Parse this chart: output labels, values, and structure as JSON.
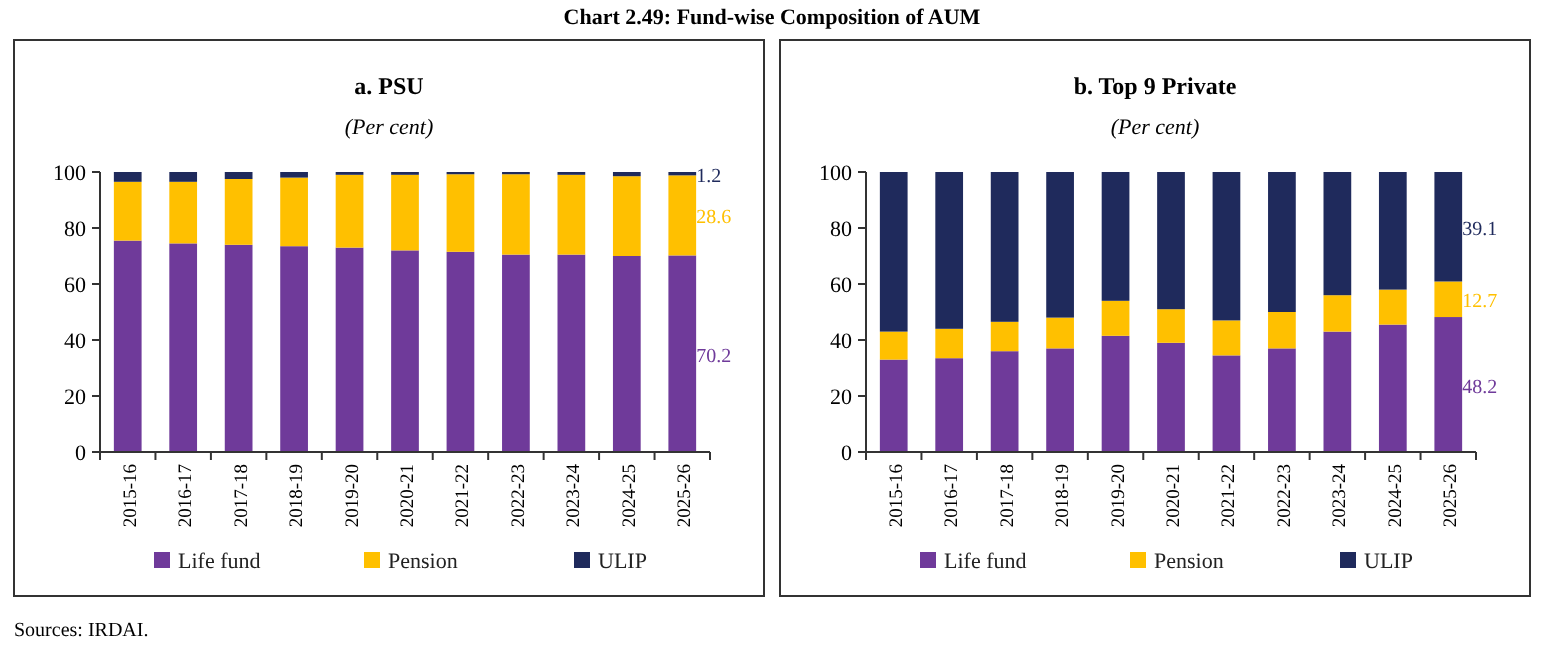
{
  "chart_data": [
    {
      "type": "bar",
      "title": "a. PSU",
      "subtitle": "(Per cent)",
      "stacked": true,
      "legend": "bottom",
      "ylim": [
        0,
        100
      ],
      "yticks": [
        0,
        20,
        40,
        60,
        80,
        100
      ],
      "annotations": [
        "Chart 2.49: Fund-wise Composition of AUM"
      ],
      "categories": [
        "2015-16",
        "2016-17",
        "2017-18",
        "2018-19",
        "2019-20",
        "2020-21",
        "2021-22",
        "2022-23",
        "2023-24",
        "2024-25",
        "2025-26"
      ],
      "series": [
        {
          "name": "Life fund",
          "color": "#6f3a9a",
          "values": [
            75.5,
            74.5,
            74,
            73.5,
            73,
            72,
            71.5,
            70.5,
            70.5,
            70,
            70.2
          ],
          "value_labels": [
            null,
            null,
            null,
            null,
            null,
            null,
            null,
            null,
            null,
            null,
            "70.2"
          ]
        },
        {
          "name": "Pension",
          "color": "#ffc000",
          "values": [
            21,
            22,
            23.5,
            24.5,
            26,
            27,
            27.7,
            28.7,
            28.5,
            28.5,
            28.6
          ],
          "value_labels": [
            null,
            null,
            null,
            null,
            null,
            null,
            null,
            null,
            null,
            null,
            "28.6"
          ]
        },
        {
          "name": "ULIP",
          "color": "#1f2a5c",
          "values": [
            3.5,
            3.5,
            2.5,
            2,
            1,
            1,
            0.8,
            0.8,
            1,
            1.5,
            1.2
          ],
          "value_labels": [
            null,
            null,
            null,
            null,
            null,
            null,
            null,
            null,
            null,
            null,
            "1.2"
          ]
        }
      ]
    },
    {
      "type": "bar",
      "title": "b. Top 9 Private",
      "subtitle": "(Per cent)",
      "stacked": true,
      "legend": "bottom",
      "ylim": [
        0,
        100
      ],
      "yticks": [
        0,
        20,
        40,
        60,
        80,
        100
      ],
      "annotations": [
        "Sources: IRDAI."
      ],
      "categories": [
        "2015-16",
        "2016-17",
        "2017-18",
        "2018-19",
        "2019-20",
        "2020-21",
        "2021-22",
        "2022-23",
        "2023-24",
        "2024-25",
        "2025-26"
      ],
      "series": [
        {
          "name": "Life fund",
          "color": "#6f3a9a",
          "values": [
            33,
            33.5,
            36,
            37,
            41.5,
            39,
            34.5,
            37,
            43,
            45.5,
            48.2
          ],
          "value_labels": [
            null,
            null,
            null,
            null,
            null,
            null,
            null,
            null,
            null,
            null,
            "48.2"
          ]
        },
        {
          "name": "Pension",
          "color": "#ffc000",
          "values": [
            10,
            10.5,
            10.5,
            11,
            12.5,
            12,
            12.5,
            13,
            13,
            12.5,
            12.7
          ],
          "value_labels": [
            null,
            null,
            null,
            null,
            null,
            null,
            null,
            null,
            null,
            null,
            "12.7"
          ]
        },
        {
          "name": "ULIP",
          "color": "#1f2a5c",
          "values": [
            57,
            56,
            53.5,
            52,
            46,
            49,
            53,
            50,
            44,
            42,
            39.1
          ],
          "value_labels": [
            null,
            null,
            null,
            null,
            null,
            null,
            null,
            null,
            null,
            null,
            "39.1"
          ]
        }
      ]
    }
  ]
}
